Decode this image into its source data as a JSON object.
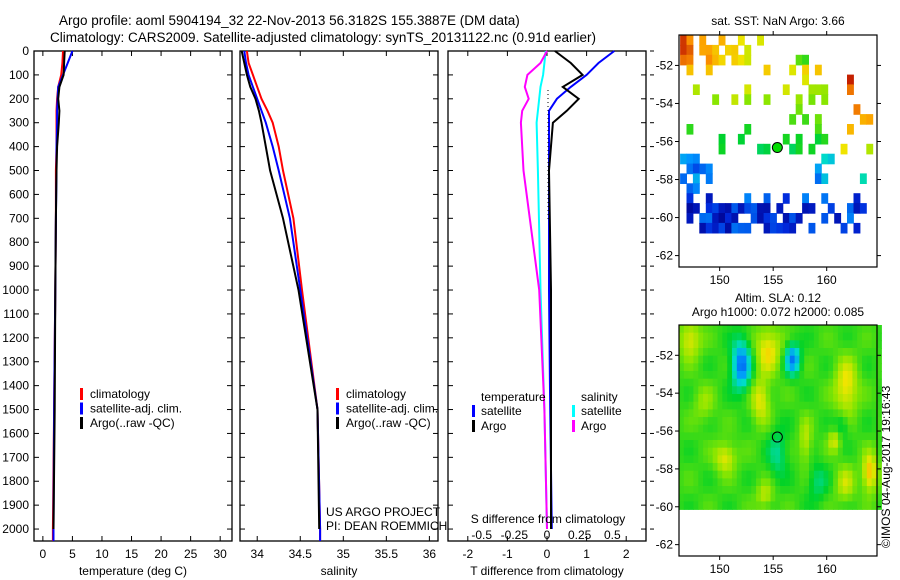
{
  "title": {
    "line1": "Argo profile: aoml 5904194_32 22-Nov-2013 56.3182S 155.3887E (DM data)",
    "line2": "Climatology: CARS2009. Satellite-adjusted climatology: synTS_20131122.nc (0.91d earlier)"
  },
  "credit": "©IMOS 04-Aug-2017 19:16:43",
  "project": {
    "line1": "US ARGO PROJECT",
    "line2": "PI: DEAN ROEMMICH"
  },
  "colors": {
    "climatology": "#ff0000",
    "satellite": "#0000ff",
    "argo": "#000000",
    "s_satellite": "#00ffff",
    "s_argo": "#ff00ff"
  },
  "chart_data": [
    {
      "type": "line",
      "id": "temperature",
      "xlabel": "temperature (deg C)",
      "ylabel": "",
      "xlim": [
        -1.5,
        32
      ],
      "ylim": [
        2050,
        0
      ],
      "xticks": [
        "0",
        "5",
        "10",
        "15",
        "20",
        "25",
        "30"
      ],
      "yticks": [
        "0",
        "100",
        "200",
        "300",
        "400",
        "500",
        "600",
        "700",
        "800",
        "900",
        "1000",
        "1100",
        "1200",
        "1300",
        "1400",
        "1500",
        "1600",
        "1700",
        "1800",
        "1900",
        "2000"
      ],
      "legend": [
        "climatology",
        "satellite-adj. clim.",
        "Argo(..raw -QC)"
      ],
      "depth": [
        0,
        50,
        100,
        150,
        200,
        250,
        300,
        400,
        500,
        700,
        1000,
        1500,
        2000,
        2050
      ],
      "series": [
        {
          "name": "climatology",
          "values": [
            3.4,
            3.3,
            3.1,
            2.6,
            2.4,
            2.3,
            2.3,
            2.3,
            2.2,
            2.2,
            2.1,
            1.9,
            1.7,
            1.7
          ]
        },
        {
          "name": "satellite-adj. clim.",
          "values": [
            5.0,
            4.2,
            3.4,
            2.6,
            2.5,
            2.4,
            2.4,
            2.3,
            2.3,
            2.2,
            2.1,
            1.9,
            1.8,
            1.8
          ]
        },
        {
          "name": "Argo(..raw -QC)",
          "values": [
            3.7,
            3.6,
            3.5,
            2.8,
            2.6,
            2.8,
            2.7,
            2.4,
            2.3,
            2.2,
            2.1,
            2.0,
            1.8,
            null
          ]
        }
      ]
    },
    {
      "type": "line",
      "id": "salinity",
      "xlabel": "salinity",
      "ylabel": "",
      "xlim": [
        33.8,
        36.1
      ],
      "ylim": [
        2050,
        0
      ],
      "xticks": [
        "34",
        "34.5",
        "35",
        "35.5",
        "36"
      ],
      "legend": [
        "climatology",
        "satellite-adj. clim.",
        "Argo(..raw -QC)"
      ],
      "depth": [
        0,
        50,
        100,
        150,
        200,
        250,
        300,
        400,
        500,
        700,
        1000,
        1500,
        2000,
        2050
      ],
      "series": [
        {
          "name": "climatology",
          "values": [
            33.88,
            33.9,
            33.95,
            34.0,
            34.05,
            34.12,
            34.18,
            34.25,
            34.3,
            34.42,
            34.52,
            34.7,
            34.73,
            34.73
          ]
        },
        {
          "name": "satellite-adj. clim.",
          "values": [
            33.85,
            33.87,
            33.9,
            33.95,
            34.0,
            34.05,
            34.1,
            34.18,
            34.25,
            34.38,
            34.5,
            34.7,
            34.73,
            34.73
          ]
        },
        {
          "name": "Argo(..raw -QC)",
          "values": [
            33.82,
            33.85,
            33.88,
            33.92,
            33.98,
            34.02,
            34.05,
            34.1,
            34.15,
            34.3,
            34.48,
            34.7,
            34.72,
            null
          ]
        }
      ]
    },
    {
      "type": "line",
      "id": "difference",
      "xlabel": "T difference from climatology",
      "x2label": "S difference from climatology",
      "xlim": [
        -2.5,
        2.5
      ],
      "x2lim": [
        -0.758,
        0.758
      ],
      "ylim": [
        2050,
        0
      ],
      "xticks": [
        "-2",
        "-1",
        "0",
        "1",
        "2"
      ],
      "x2ticks": [
        "-0.5",
        "-0.25",
        "0",
        "0.25",
        "0.5"
      ],
      "legend": {
        "temperature": "temperature",
        "salinity": "salinity",
        "t_sat": "satellite",
        "t_argo": "Argo",
        "s_sat": "satellite",
        "s_argo": "Argo"
      },
      "depth": [
        0,
        50,
        100,
        150,
        200,
        250,
        300,
        500,
        1000,
        1500,
        2000
      ],
      "series": [
        {
          "name": "T satellite",
          "axis": "T",
          "values": [
            1.7,
            1.3,
            1.0,
            0.6,
            0.25,
            0.05,
            0.05,
            0.05,
            0.05,
            0.08,
            0.12
          ]
        },
        {
          "name": "T Argo",
          "axis": "T",
          "values": [
            0.2,
            0.6,
            0.9,
            0.4,
            0.8,
            0.5,
            0.15,
            0.05,
            0.1,
            0.1,
            0.1
          ]
        },
        {
          "name": "S satellite",
          "axis": "S",
          "values": [
            -0.01,
            -0.02,
            -0.03,
            -0.05,
            -0.06,
            -0.07,
            -0.08,
            -0.07,
            -0.05,
            -0.02,
            0.0
          ]
        },
        {
          "name": "S Argo",
          "axis": "S",
          "values": [
            0,
            -0.05,
            -0.15,
            -0.17,
            -0.14,
            -0.19,
            -0.2,
            -0.18,
            -0.06,
            -0.02,
            0.0
          ]
        }
      ]
    },
    {
      "type": "heatmap",
      "id": "sst-map",
      "title": "sat. SST: NaN Argo: 3.66",
      "xlim": [
        146.2,
        164.7
      ],
      "ylim": [
        -62.6,
        -50.4
      ],
      "xticks": [
        "150",
        "155",
        "160"
      ],
      "yticks": [
        "-52",
        "-54",
        "-56",
        "-58",
        "-60",
        "-62"
      ],
      "argo_position": {
        "lon": 155.3887,
        "lat": -56.3182
      }
    },
    {
      "type": "heatmap",
      "id": "sla-map",
      "title": "Altim. SLA: 0.12",
      "subtitle": "Argo h1000: 0.072 h2000: 0.085",
      "xlim": [
        146.2,
        164.7
      ],
      "ylim": [
        -62.6,
        -50.4
      ],
      "xticks": [
        "150",
        "155",
        "160"
      ],
      "yticks": [
        "-52",
        "-54",
        "-56",
        "-58",
        "-60",
        "-62"
      ],
      "argo_position": {
        "lon": 155.3887,
        "lat": -56.3182
      }
    }
  ]
}
